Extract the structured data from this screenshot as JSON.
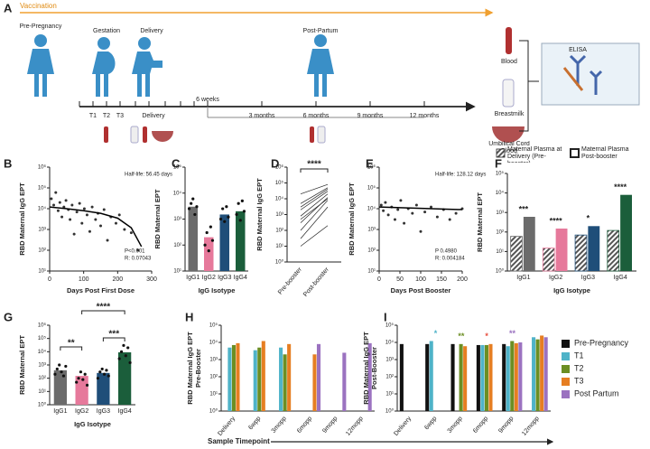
{
  "panel_a": {
    "panel": "A",
    "vaccination": "Vaccination",
    "stages": [
      "Pre-Pregnancy",
      "Gestation",
      "Delivery",
      "Post-Partum"
    ],
    "timeline": [
      "T1",
      "T2",
      "T3",
      "Delivery",
      "6 weeks",
      "3 months",
      "6 months",
      "9 months",
      "12 months"
    ],
    "samples": {
      "blood": "Blood",
      "breastmilk": "Breastmilk",
      "cord": "Umbilical Cord Blood"
    },
    "assay": "ELISA"
  },
  "chart_data": [
    {
      "type": "scatter",
      "panel": "B",
      "xlabel": "Days Post First Dose",
      "ylabel": "RBD Maternal IgG EPT",
      "log_scale": true,
      "xlim": [
        0,
        300
      ],
      "xticks": [
        0,
        100,
        200,
        300
      ],
      "ylim": [
        10,
        1000000
      ],
      "yticks": [
        {
          "value": 10,
          "label": "10¹"
        },
        {
          "value": 100,
          "label": "10²"
        },
        {
          "value": 1000,
          "label": "10³"
        },
        {
          "value": 10000,
          "label": "10⁴"
        },
        {
          "value": 100000,
          "label": "10⁵"
        },
        {
          "value": 1000000,
          "label": "10⁶"
        }
      ],
      "x": [
        5,
        12,
        18,
        25,
        30,
        36,
        42,
        48,
        55,
        60,
        66,
        72,
        80,
        88,
        95,
        102,
        110,
        118,
        125,
        135,
        142,
        150,
        160,
        170,
        180,
        195,
        205,
        220,
        240,
        260
      ],
      "values": [
        30000,
        15000,
        60000,
        8000,
        20000,
        4000,
        12000,
        25000,
        9000,
        3000,
        15000,
        600,
        7000,
        18000,
        2000,
        10000,
        5000,
        800,
        12000,
        3000,
        6000,
        1500,
        9000,
        300,
        4000,
        2000,
        5000,
        1000,
        700,
        100
      ],
      "fit_x": [
        0,
        50,
        100,
        150,
        200,
        240,
        270
      ],
      "fit_values": [
        12000,
        10000,
        8000,
        6000,
        3500,
        1200,
        150
      ],
      "annotations": [
        "Half-life: 56.45 days",
        "P<0.001",
        "R: 0.07043"
      ],
      "color": "#333333"
    },
    {
      "type": "bar",
      "panel": "C",
      "xlabel": "IgG Isotype",
      "ylabel": "RBD Maternal EPT",
      "log_scale": true,
      "ylim": [
        10,
        100000
      ],
      "yticks": [
        {
          "value": 10,
          "label": "10¹"
        },
        {
          "value": 100,
          "label": "10²"
        },
        {
          "value": 1000,
          "label": "10³"
        },
        {
          "value": 10000,
          "label": "10⁴"
        },
        {
          "value": 100000,
          "label": "10⁵"
        }
      ],
      "categories": [
        "IgG1",
        "IgG2",
        "IgG3",
        "IgG4"
      ],
      "values": [
        3000,
        200,
        1500,
        2000
      ],
      "colors": [
        "#6b6b6b",
        "#e6799b",
        "#1f4e79",
        "#1b5e3b"
      ],
      "points": [
        [
          2500,
          4000,
          6000,
          1500,
          3000
        ],
        [
          100,
          300,
          60,
          500,
          150
        ],
        [
          1000,
          2500,
          800,
          3000,
          1200
        ],
        [
          1500,
          4000,
          900,
          5000,
          2000
        ]
      ]
    },
    {
      "type": "paired",
      "panel": "D",
      "ylabel": "RBD Maternal IgG EPT",
      "log_scale": true,
      "ylim": [
        1,
        1000000
      ],
      "yticks": [
        {
          "value": 1,
          "label": "10⁰"
        },
        {
          "value": 10,
          "label": "10¹"
        },
        {
          "value": 100,
          "label": "10²"
        },
        {
          "value": 1000,
          "label": "10³"
        },
        {
          "value": 10000,
          "label": "10⁴"
        },
        {
          "value": 100000,
          "label": "10⁵"
        },
        {
          "value": 1000000,
          "label": "10⁶"
        }
      ],
      "categories": [
        "Pre-booster",
        "Post-booster"
      ],
      "values": [
        [
          20000,
          5000,
          2000,
          800,
          300,
          100,
          30,
          10,
          3000,
          500
        ],
        [
          80000,
          50000,
          30000,
          20000,
          12000,
          8000,
          3000,
          200,
          40000,
          10000
        ]
      ],
      "significance": "****"
    },
    {
      "type": "scatter",
      "panel": "E",
      "xlabel": "Days Post Booster",
      "ylabel": "RBD Maternal IgG EPT",
      "log_scale": true,
      "xlim": [
        0,
        200
      ],
      "xticks": [
        0,
        50,
        100,
        150,
        200
      ],
      "ylim": [
        10,
        1000000
      ],
      "yticks": [
        {
          "value": 10,
          "label": "10¹"
        },
        {
          "value": 100,
          "label": "10²"
        },
        {
          "value": 1000,
          "label": "10³"
        },
        {
          "value": 10000,
          "label": "10⁴"
        },
        {
          "value": 100000,
          "label": "10⁵"
        },
        {
          "value": 1000000,
          "label": "10⁶"
        }
      ],
      "x": [
        5,
        10,
        15,
        22,
        30,
        38,
        45,
        52,
        60,
        70,
        80,
        90,
        100,
        110,
        125,
        140,
        155,
        170,
        185,
        200
      ],
      "values": [
        15000,
        8000,
        20000,
        5000,
        12000,
        3000,
        9000,
        25000,
        2000,
        10000,
        6000,
        15000,
        800,
        7000,
        12000,
        4000,
        9000,
        3000,
        6000,
        10000
      ],
      "fit_x": [
        0,
        200
      ],
      "fit_values": [
        12000,
        9000
      ],
      "annotations": [
        "Half-life: 128.12 days",
        "P 0.4980",
        "R: 0.004184"
      ],
      "color": "#333333"
    },
    {
      "type": "grouped-bar",
      "panel": "F",
      "xlabel": "IgG Isotype",
      "ylabel": "RBD Maternal EPT",
      "log_scale": true,
      "ylim": [
        1,
        100000
      ],
      "yticks": [
        {
          "value": 1,
          "label": "10⁰"
        },
        {
          "value": 10,
          "label": "10¹"
        },
        {
          "value": 100,
          "label": "10²"
        },
        {
          "value": 1000,
          "label": "10³"
        },
        {
          "value": 10000,
          "label": "10⁴"
        },
        {
          "value": 100000,
          "label": "10⁵"
        }
      ],
      "categories": [
        "IgG1",
        "IgG2",
        "IgG3",
        "IgG4"
      ],
      "colors": [
        "#6b6b6b",
        "#e6799b",
        "#1f4e79",
        "#1b5e3b"
      ],
      "series": [
        {
          "name": "Maternal Plasma at Delivery (Pre-booster)",
          "pattern": "hatch",
          "values": [
            60,
            15,
            70,
            120
          ]
        },
        {
          "name": "Maternal Plasma Post-booster",
          "pattern": "solid",
          "values": [
            600,
            150,
            200,
            8000
          ]
        }
      ],
      "significance": [
        "***",
        "****",
        "*",
        "****"
      ]
    },
    {
      "type": "bar",
      "panel": "G",
      "xlabel": "IgG Isotype",
      "ylabel": "RBD Maternal EPT",
      "log_scale": true,
      "ylim": [
        1,
        1000000
      ],
      "yticks": [
        {
          "value": 1,
          "label": "10⁰"
        },
        {
          "value": 10,
          "label": "10¹"
        },
        {
          "value": 100,
          "label": "10²"
        },
        {
          "value": 1000,
          "label": "10³"
        },
        {
          "value": 10000,
          "label": "10⁴"
        },
        {
          "value": 100000,
          "label": "10⁵"
        },
        {
          "value": 1000000,
          "label": "10⁶"
        }
      ],
      "categories": [
        "IgG1",
        "IgG2",
        "IgG3",
        "IgG4"
      ],
      "values": [
        400,
        150,
        250,
        9000
      ],
      "colors": [
        "#6b6b6b",
        "#e6799b",
        "#1f4e79",
        "#1b5e3b"
      ],
      "points": [
        [
          200,
          500,
          1000,
          300,
          150,
          800
        ],
        [
          50,
          100,
          300,
          80,
          200,
          30
        ],
        [
          100,
          300,
          500,
          200,
          400,
          150
        ],
        [
          3000,
          10000,
          30000,
          5000,
          20000,
          1500
        ]
      ],
      "pairs": [
        {
          "from": 0,
          "to": 1,
          "label": "**"
        },
        {
          "from": 2,
          "to": 3,
          "label": "***"
        },
        {
          "from": 1,
          "to": 3,
          "label": "****"
        }
      ]
    },
    {
      "type": "grouped-bar",
      "panel": "H",
      "ylabel": [
        "RBD Maternal IgG EPT",
        "Pre-Booster"
      ],
      "log_scale": true,
      "ylim": [
        1,
        100000
      ],
      "yticks": [
        {
          "value": 1,
          "label": "10⁰"
        },
        {
          "value": 10,
          "label": "10¹"
        },
        {
          "value": 100,
          "label": "10²"
        },
        {
          "value": 1000,
          "label": "10³"
        },
        {
          "value": 10000,
          "label": "10⁴"
        },
        {
          "value": 100000,
          "label": "10⁵"
        }
      ],
      "categories": [
        "Delivery",
        "6wpp",
        "3mopp",
        "6mopp",
        "9mopp",
        "12mopp"
      ],
      "series": [
        {
          "name": "Pre-Pregnancy",
          "color": "#111111",
          "values": [
            null,
            null,
            null,
            null,
            null,
            null
          ]
        },
        {
          "name": "T1",
          "color": "#4fb3c8",
          "values": [
            5000,
            3500,
            5000,
            null,
            null,
            null
          ]
        },
        {
          "name": "T2",
          "color": "#6b8e23",
          "values": [
            7000,
            5000,
            2000,
            null,
            null,
            null
          ]
        },
        {
          "name": "T3",
          "color": "#e67e22",
          "values": [
            9000,
            12000,
            8000,
            2000,
            null,
            null
          ]
        },
        {
          "name": "Post Partum",
          "color": "#9b72c0",
          "values": [
            null,
            null,
            null,
            8000,
            2500,
            9000
          ]
        }
      ]
    },
    {
      "type": "grouped-bar",
      "panel": "I",
      "ylabel": [
        "RBD Maternal IgG EPT",
        "Post-Booster"
      ],
      "log_scale": true,
      "ylim": [
        1,
        100000
      ],
      "legend": "right",
      "yticks": [
        {
          "value": 1,
          "label": "10⁰"
        },
        {
          "value": 10,
          "label": "10¹"
        },
        {
          "value": 100,
          "label": "10²"
        },
        {
          "value": 1000,
          "label": "10³"
        },
        {
          "value": 10000,
          "label": "10⁴"
        },
        {
          "value": 100000,
          "label": "10⁵"
        }
      ],
      "categories": [
        "Delivery",
        "6wpp",
        "3mopp",
        "6mopp",
        "9mopp",
        "12mopp"
      ],
      "xlabel": "Sample Timepoint",
      "series": [
        {
          "name": "Pre-Pregnancy",
          "color": "#111111",
          "values": [
            8000,
            8000,
            8000,
            7000,
            8000,
            null
          ]
        },
        {
          "name": "T1",
          "color": "#4fb3c8",
          "values": [
            null,
            12000,
            null,
            7000,
            6000,
            20000
          ]
        },
        {
          "name": "T2",
          "color": "#6b8e23",
          "values": [
            null,
            null,
            8000,
            7000,
            12000,
            15000
          ]
        },
        {
          "name": "T3",
          "color": "#e67e22",
          "values": [
            null,
            null,
            6000,
            8000,
            9000,
            25000
          ]
        },
        {
          "name": "Post Partum",
          "color": "#9b72c0",
          "values": [
            null,
            null,
            null,
            null,
            10000,
            20000
          ]
        }
      ],
      "significance": [
        null,
        "*",
        "**",
        "*",
        "**",
        null
      ],
      "significance_colors": [
        null,
        "#4fb3c8",
        "#6b8e23",
        "#e74c3c",
        "#9b72c0",
        null
      ]
    }
  ]
}
